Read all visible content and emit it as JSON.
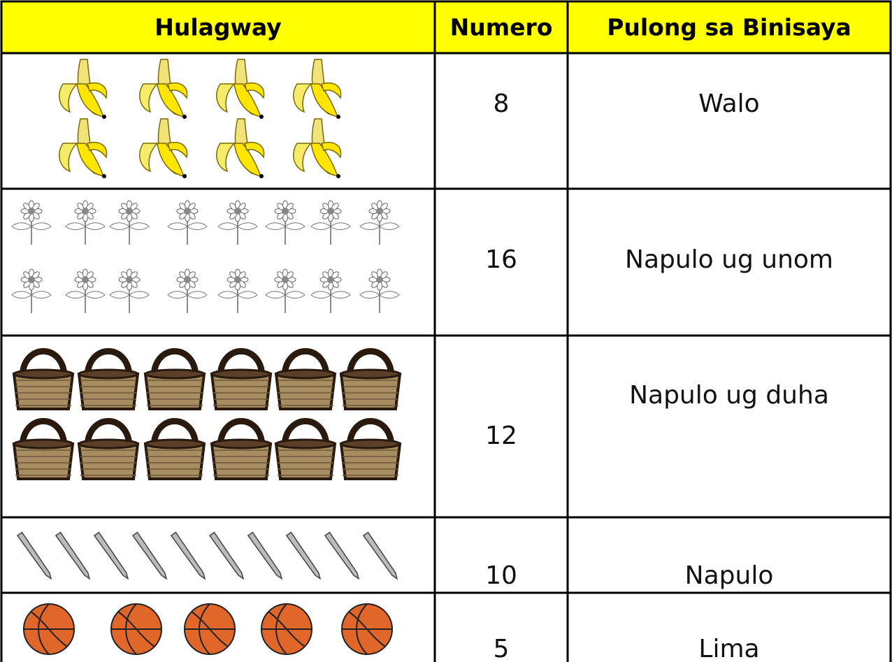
{
  "table": {
    "header": [
      "Hulagway",
      "Numero",
      "Pulong sa Binisaya"
    ],
    "rows": [
      {
        "number": 8,
        "word": "Walo"
      },
      {
        "number": 16,
        "word": "Napulo ug unom"
      },
      {
        "number": 12,
        "word": "Napulo ug duha"
      },
      {
        "number": 10,
        "word": "Napulo"
      },
      {
        "number": 5,
        "word": "Lima"
      }
    ]
  }
}
